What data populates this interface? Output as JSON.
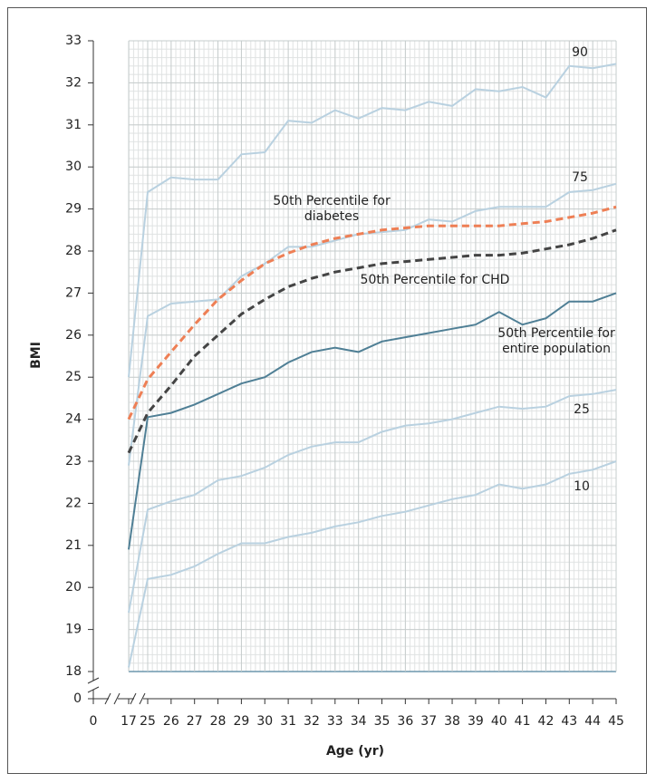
{
  "chart_data": {
    "type": "line",
    "x_label": "Age (yr)",
    "y_label": "BMI",
    "x": [
      17,
      25,
      26,
      27,
      28,
      29,
      30,
      31,
      32,
      33,
      34,
      35,
      36,
      37,
      38,
      39,
      40,
      41,
      42,
      43,
      44,
      45
    ],
    "xlim": [
      0,
      45
    ],
    "xticks": [
      0,
      17,
      25,
      26,
      27,
      28,
      29,
      30,
      31,
      32,
      33,
      34,
      35,
      36,
      37,
      38,
      39,
      40,
      41,
      42,
      43,
      44,
      45
    ],
    "ylim": [
      0,
      33
    ],
    "yticks": [
      0,
      18,
      19,
      20,
      21,
      22,
      23,
      24,
      25,
      26,
      27,
      28,
      29,
      30,
      31,
      32,
      33
    ],
    "grid": true,
    "series": [
      {
        "name": "90",
        "color": "#b9d1e0",
        "dash": false,
        "values": [
          25.0,
          29.4,
          29.75,
          29.7,
          29.7,
          30.3,
          30.35,
          31.1,
          31.05,
          31.35,
          31.15,
          31.4,
          31.35,
          31.55,
          31.45,
          31.85,
          31.8,
          31.9,
          31.65,
          32.4,
          32.35,
          32.45
        ]
      },
      {
        "name": "75",
        "color": "#b9d1e0",
        "dash": false,
        "values": [
          22.9,
          26.45,
          26.75,
          26.8,
          26.85,
          27.4,
          27.7,
          28.1,
          28.1,
          28.25,
          28.4,
          28.45,
          28.5,
          28.75,
          28.7,
          28.95,
          29.05,
          29.05,
          29.05,
          29.4,
          29.45,
          29.6
        ]
      },
      {
        "name": "50th Percentile for entire population",
        "color": "#4f7f95",
        "dash": false,
        "values": [
          20.9,
          24.05,
          24.15,
          24.35,
          24.6,
          24.85,
          25.0,
          25.35,
          25.6,
          25.7,
          25.6,
          25.85,
          25.95,
          26.05,
          26.15,
          26.25,
          26.55,
          26.25,
          26.4,
          26.8,
          26.8,
          27.0
        ]
      },
      {
        "name": "25",
        "color": "#b9d1e0",
        "dash": false,
        "values": [
          19.4,
          21.85,
          22.05,
          22.2,
          22.55,
          22.65,
          22.85,
          23.15,
          23.35,
          23.45,
          23.45,
          23.7,
          23.85,
          23.9,
          24.0,
          24.15,
          24.3,
          24.25,
          24.3,
          24.55,
          24.6,
          24.7
        ]
      },
      {
        "name": "10",
        "color": "#b9d1e0",
        "dash": false,
        "values": [
          18.1,
          20.2,
          20.3,
          20.5,
          20.8,
          21.05,
          21.05,
          21.2,
          21.3,
          21.45,
          21.55,
          21.7,
          21.8,
          21.95,
          22.1,
          22.2,
          22.45,
          22.35,
          22.45,
          22.7,
          22.8,
          23.0
        ]
      },
      {
        "name": "50th Percentile for diabetes",
        "color": "#ee7f55",
        "dash": true,
        "values": [
          24.0,
          24.95,
          25.6,
          26.25,
          26.85,
          27.3,
          27.7,
          27.95,
          28.15,
          28.3,
          28.4,
          28.5,
          28.55,
          28.6,
          28.6,
          28.6,
          28.6,
          28.65,
          28.7,
          28.8,
          28.9,
          29.05
        ]
      },
      {
        "name": "50th Percentile for CHD",
        "color": "#444444",
        "dash": true,
        "values": [
          23.2,
          24.15,
          24.8,
          25.5,
          26.0,
          26.5,
          26.85,
          27.15,
          27.35,
          27.5,
          27.6,
          27.7,
          27.75,
          27.8,
          27.85,
          27.9,
          27.9,
          27.95,
          28.05,
          28.15,
          28.3,
          28.5
        ]
      }
    ]
  }
}
